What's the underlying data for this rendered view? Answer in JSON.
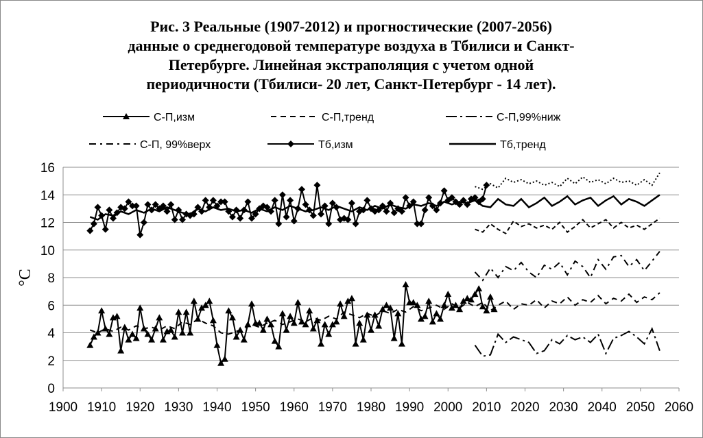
{
  "chart_data": {
    "type": "line",
    "title": [
      "Рис. 3 Реальные (1907-2012) и прогностические  (2007-2056)",
      "данные  о среднегодовой температуре воздуха в Тбилиси и Санкт-",
      "Петербурге.  Линейная экстраполяция с учетом одной",
      "периодичности (Тбилиси- 20 лет,  Санкт-Петербург - 14 лет)."
    ],
    "y_label": "°C",
    "xlim": [
      1900,
      2060
    ],
    "xticks": [
      1900,
      1910,
      1920,
      1930,
      1940,
      1950,
      1960,
      1970,
      1980,
      1990,
      2000,
      2010,
      2020,
      2030,
      2040,
      2050,
      2060
    ],
    "ylim": [
      0,
      16
    ],
    "yticks": [
      0,
      2,
      4,
      6,
      8,
      10,
      12,
      14,
      16
    ],
    "grid": true,
    "series": [
      {
        "name": "С-П,изм",
        "color": "#000000",
        "marker": "triangle",
        "dash": "none",
        "x": [
          1907,
          1908,
          1909,
          1910,
          1911,
          1912,
          1913,
          1914,
          1915,
          1916,
          1917,
          1918,
          1919,
          1920,
          1921,
          1922,
          1923,
          1924,
          1925,
          1926,
          1927,
          1928,
          1929,
          1930,
          1931,
          1932,
          1933,
          1934,
          1935,
          1936,
          1937,
          1938,
          1939,
          1940,
          1941,
          1942,
          1943,
          1944,
          1945,
          1946,
          1947,
          1948,
          1949,
          1950,
          1951,
          1952,
          1953,
          1954,
          1955,
          1956,
          1957,
          1958,
          1959,
          1960,
          1961,
          1962,
          1963,
          1964,
          1965,
          1966,
          1967,
          1968,
          1969,
          1970,
          1971,
          1972,
          1973,
          1974,
          1975,
          1976,
          1977,
          1978,
          1979,
          1980,
          1981,
          1982,
          1983,
          1984,
          1985,
          1986,
          1987,
          1988,
          1989,
          1990,
          1991,
          1992,
          1993,
          1994,
          1995,
          1996,
          1997,
          1998,
          1999,
          2000,
          2001,
          2002,
          2003,
          2004,
          2005,
          2006,
          2007,
          2008,
          2009,
          2010,
          2011,
          2012
        ],
        "values": [
          3.1,
          3.7,
          4.0,
          5.6,
          4.3,
          3.9,
          5.1,
          5.2,
          2.7,
          4.4,
          3.5,
          3.9,
          3.6,
          5.8,
          4.3,
          3.9,
          3.5,
          4.3,
          5.1,
          3.5,
          4.1,
          4.2,
          3.7,
          5.5,
          4.0,
          5.5,
          4.0,
          6.3,
          5.0,
          5.8,
          6.0,
          6.3,
          4.9,
          3.1,
          1.8,
          2.1,
          5.6,
          5.1,
          3.7,
          4.2,
          3.5,
          4.6,
          6.1,
          4.7,
          4.7,
          4.2,
          5.0,
          4.6,
          3.4,
          3.0,
          5.4,
          4.2,
          5.2,
          4.7,
          6.2,
          4.8,
          4.6,
          5.6,
          4.3,
          4.9,
          3.2,
          4.6,
          3.9,
          4.6,
          4.8,
          6.1,
          5.2,
          6.3,
          6.5,
          3.2,
          4.7,
          3.5,
          5.3,
          4.2,
          5.3,
          4.5,
          5.7,
          6.0,
          5.8,
          3.6,
          5.4,
          3.2,
          7.5,
          6.2,
          6.2,
          6.0,
          5.0,
          5.2,
          6.3,
          4.8,
          5.4,
          5.0,
          6.0,
          6.8,
          5.8,
          6.0,
          5.7,
          6.3,
          6.5,
          6.4,
          6.8,
          7.2,
          5.9,
          5.6,
          6.6,
          5.7
        ]
      },
      {
        "name": "С-П,тренд",
        "color": "#000000",
        "marker": "none",
        "dash": "8,6",
        "x": [
          1907,
          1909,
          1911,
          1913,
          1915,
          1917,
          1919,
          1921,
          1923,
          1925,
          1927,
          1929,
          1931,
          1933,
          1935,
          1937,
          1939,
          1941,
          1943,
          1945,
          1947,
          1949,
          1951,
          1953,
          1955,
          1957,
          1959,
          1961,
          1963,
          1965,
          1967,
          1969,
          1971,
          1973,
          1975,
          1977,
          1979,
          1981,
          1983,
          1985,
          1987,
          1989,
          1991,
          1993,
          1995,
          1997,
          1999,
          2001,
          2003,
          2005,
          2007,
          2009,
          2011,
          2013,
          2015,
          2017,
          2019,
          2021,
          2023,
          2025,
          2027,
          2029,
          2031,
          2033,
          2035,
          2037,
          2039,
          2041,
          2043,
          2045,
          2047,
          2049,
          2051,
          2053,
          2055
        ],
        "values": [
          4.2,
          4.0,
          4.3,
          4.1,
          4.4,
          4.2,
          4.5,
          4.3,
          4.4,
          4.2,
          4.5,
          4.3,
          4.8,
          4.6,
          5.0,
          4.7,
          4.5,
          4.0,
          3.9,
          4.1,
          4.3,
          4.6,
          4.4,
          4.7,
          4.9,
          4.6,
          4.8,
          5.0,
          4.8,
          5.1,
          4.9,
          5.2,
          5.0,
          5.5,
          5.3,
          5.1,
          5.4,
          5.2,
          5.6,
          5.4,
          5.7,
          5.5,
          5.9,
          5.6,
          5.8,
          6.0,
          5.7,
          6.1,
          5.8,
          6.2,
          5.9,
          6.2,
          5.6,
          6.0,
          6.3,
          5.7,
          6.1,
          6.0,
          6.4,
          5.8,
          6.3,
          6.1,
          6.6,
          6.0,
          6.4,
          6.2,
          6.7,
          6.1,
          6.5,
          6.3,
          6.8,
          6.2,
          6.6,
          6.4,
          6.9
        ]
      },
      {
        "name": "С-П,99%ниж",
        "color": "#000000",
        "marker": "none",
        "dash": "16,5,3,5",
        "x": [
          2007,
          2009,
          2011,
          2013,
          2015,
          2017,
          2019,
          2021,
          2023,
          2025,
          2027,
          2029,
          2031,
          2033,
          2035,
          2037,
          2039,
          2041,
          2043,
          2045,
          2047,
          2049,
          2051,
          2053,
          2055
        ],
        "values": [
          3.1,
          2.3,
          2.4,
          3.9,
          3.3,
          3.7,
          3.5,
          3.3,
          2.5,
          2.7,
          3.5,
          3.2,
          3.8,
          3.5,
          3.7,
          3.3,
          3.9,
          2.5,
          3.6,
          3.8,
          4.1,
          3.7,
          3.2,
          4.3,
          2.7
        ]
      },
      {
        "name": "С-П, 99%верх",
        "color": "#000000",
        "marker": "none",
        "dash": "10,6,3,6",
        "x": [
          2007,
          2009,
          2011,
          2013,
          2015,
          2017,
          2019,
          2021,
          2023,
          2025,
          2027,
          2029,
          2031,
          2033,
          2035,
          2037,
          2039,
          2041,
          2043,
          2045,
          2047,
          2049,
          2051,
          2053,
          2055
        ],
        "values": [
          8.4,
          7.8,
          8.7,
          8.0,
          8.8,
          8.5,
          9.1,
          8.4,
          8.0,
          8.9,
          8.6,
          9.1,
          8.2,
          9.2,
          8.8,
          8.0,
          9.3,
          8.6,
          9.5,
          9.6,
          8.8,
          9.3,
          8.5,
          9.2,
          9.9
        ]
      },
      {
        "name": "Тб,изм",
        "color": "#000000",
        "marker": "diamond",
        "dash": "none",
        "x": [
          1907,
          1908,
          1909,
          1910,
          1911,
          1912,
          1913,
          1914,
          1915,
          1916,
          1917,
          1918,
          1919,
          1920,
          1921,
          1922,
          1923,
          1924,
          1925,
          1926,
          1927,
          1928,
          1929,
          1930,
          1931,
          1932,
          1933,
          1934,
          1935,
          1936,
          1937,
          1938,
          1939,
          1940,
          1941,
          1942,
          1943,
          1944,
          1945,
          1946,
          1947,
          1948,
          1949,
          1950,
          1951,
          1952,
          1953,
          1954,
          1955,
          1956,
          1957,
          1958,
          1959,
          1960,
          1961,
          1962,
          1963,
          1964,
          1965,
          1966,
          1967,
          1968,
          1969,
          1970,
          1971,
          1972,
          1973,
          1974,
          1975,
          1976,
          1977,
          1978,
          1979,
          1980,
          1981,
          1982,
          1983,
          1984,
          1985,
          1986,
          1987,
          1988,
          1989,
          1990,
          1991,
          1992,
          1993,
          1994,
          1995,
          1996,
          1997,
          1998,
          1999,
          2000,
          2001,
          2002,
          2003,
          2004,
          2005,
          2006,
          2007,
          2008,
          2009,
          2010
        ],
        "values": [
          11.4,
          11.9,
          13.1,
          12.5,
          11.5,
          12.9,
          12.3,
          12.7,
          13.1,
          13.0,
          13.5,
          13.2,
          13.2,
          11.1,
          12.0,
          13.3,
          12.9,
          13.3,
          13.0,
          13.2,
          12.8,
          13.3,
          12.2,
          12.9,
          12.2,
          12.6,
          12.5,
          12.6,
          13.1,
          12.8,
          13.6,
          13.1,
          13.6,
          13.2,
          13.5,
          13.5,
          12.8,
          12.4,
          12.9,
          12.3,
          12.9,
          13.5,
          12.3,
          12.6,
          13.0,
          13.2,
          13.1,
          12.8,
          13.6,
          11.9,
          14.0,
          12.4,
          13.6,
          12.1,
          13.0,
          14.4,
          13.3,
          12.9,
          12.5,
          14.7,
          12.6,
          13.2,
          11.9,
          13.4,
          13.1,
          12.2,
          12.3,
          12.2,
          13.4,
          11.9,
          12.8,
          12.9,
          13.6,
          13.0,
          12.8,
          12.9,
          13.2,
          12.8,
          13.4,
          12.7,
          13.0,
          12.8,
          13.8,
          13.2,
          13.5,
          11.9,
          11.9,
          12.9,
          13.8,
          13.2,
          12.9,
          13.4,
          14.3,
          13.6,
          13.8,
          13.5,
          13.3,
          13.6,
          13.3,
          13.7,
          13.8,
          13.5,
          13.7,
          14.7
        ]
      },
      {
        "name": "Тб,тренд",
        "color": "#000000",
        "marker": "none",
        "dash": "none",
        "width": 2.5,
        "x": [
          1907,
          1909,
          1911,
          1913,
          1915,
          1917,
          1919,
          1921,
          1923,
          1925,
          1927,
          1929,
          1931,
          1933,
          1935,
          1937,
          1939,
          1941,
          1943,
          1945,
          1947,
          1949,
          1951,
          1953,
          1955,
          1957,
          1959,
          1961,
          1963,
          1965,
          1967,
          1969,
          1971,
          1973,
          1975,
          1977,
          1979,
          1981,
          1983,
          1985,
          1987,
          1989,
          1991,
          1993,
          1995,
          1997,
          1999,
          2001,
          2003,
          2005,
          2007,
          2009,
          2011,
          2013,
          2015,
          2017,
          2019,
          2021,
          2023,
          2025,
          2027,
          2029,
          2031,
          2033,
          2035,
          2037,
          2039,
          2041,
          2043,
          2045,
          2047,
          2049,
          2051,
          2053,
          2055
        ],
        "values": [
          12.4,
          12.2,
          12.6,
          12.5,
          12.8,
          12.6,
          12.9,
          12.7,
          13.0,
          12.8,
          13.1,
          12.9,
          12.7,
          12.6,
          13.0,
          12.8,
          13.1,
          12.9,
          13.0,
          12.8,
          12.9,
          12.7,
          13.0,
          12.8,
          13.1,
          12.9,
          13.2,
          13.0,
          12.8,
          12.9,
          13.1,
          12.9,
          13.2,
          13.0,
          12.8,
          13.1,
          12.9,
          13.2,
          13.0,
          13.3,
          13.1,
          13.0,
          13.3,
          13.2,
          13.4,
          13.2,
          13.5,
          13.3,
          13.5,
          13.4,
          13.6,
          13.2,
          13.1,
          13.7,
          13.3,
          13.2,
          13.7,
          13.1,
          13.4,
          13.8,
          13.2,
          13.5,
          13.9,
          13.3,
          13.6,
          13.8,
          13.2,
          13.6,
          13.9,
          13.3,
          13.7,
          13.5,
          13.2,
          13.6,
          14.0
        ]
      },
      {
        "color": "#000000",
        "marker": "none",
        "dash": "2,3",
        "x": [
          2007,
          2009,
          2011,
          2013,
          2015,
          2017,
          2019,
          2021,
          2023,
          2025,
          2027,
          2029,
          2031,
          2033,
          2035,
          2037,
          2039,
          2041,
          2043,
          2045,
          2047,
          2049,
          2051,
          2053,
          2055
        ],
        "values": [
          14.6,
          14.4,
          14.8,
          14.5,
          15.2,
          14.9,
          15.1,
          14.8,
          15.0,
          14.7,
          14.9,
          14.6,
          15.2,
          14.8,
          15.3,
          14.9,
          15.1,
          14.8,
          15.2,
          14.9,
          15.0,
          14.7,
          15.1,
          14.7,
          15.6
        ]
      },
      {
        "color": "#000000",
        "marker": "none",
        "dash": "6,4",
        "x": [
          2007,
          2009,
          2011,
          2013,
          2015,
          2017,
          2019,
          2021,
          2023,
          2025,
          2027,
          2029,
          2031,
          2033,
          2035,
          2037,
          2039,
          2041,
          2043,
          2045,
          2047,
          2049,
          2051,
          2053,
          2055
        ],
        "values": [
          11.5,
          11.3,
          11.9,
          11.5,
          11.2,
          12.1,
          11.7,
          11.9,
          11.6,
          11.8,
          11.5,
          12.0,
          11.3,
          11.7,
          12.2,
          11.6,
          11.9,
          12.2,
          11.6,
          12.0,
          11.6,
          11.8,
          11.5,
          11.9,
          12.3
        ]
      }
    ]
  }
}
